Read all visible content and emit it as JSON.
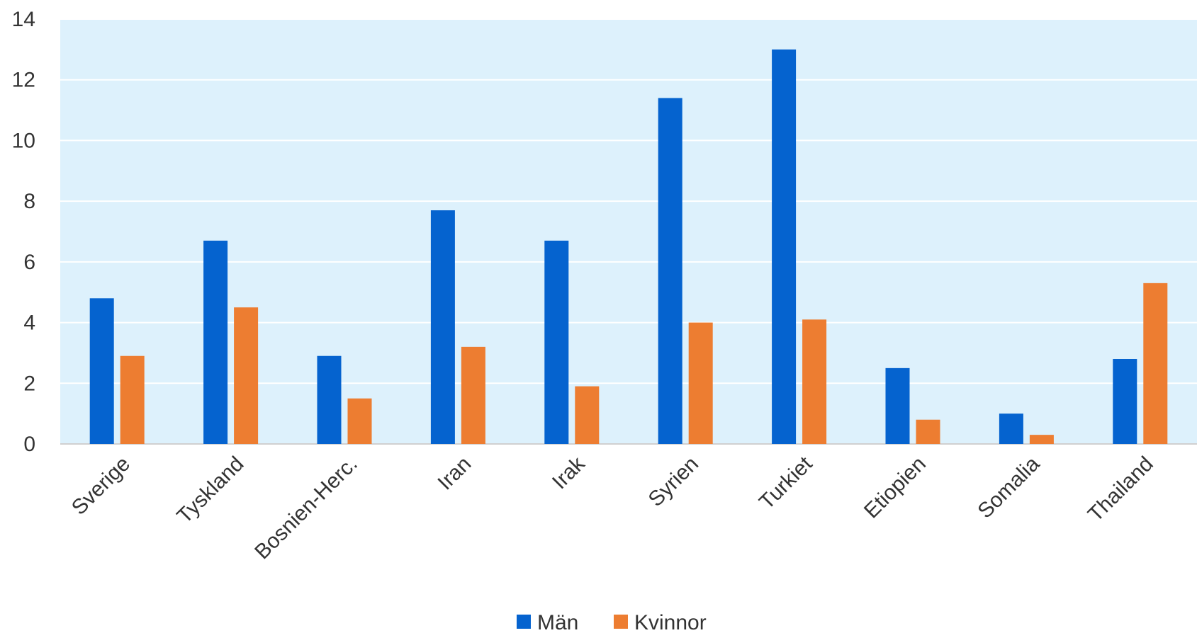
{
  "chart_data": {
    "type": "bar",
    "categories": [
      "Sverige",
      "Tyskland",
      "Bosnien-Herc.",
      "Iran",
      "Irak",
      "Syrien",
      "Turkiet",
      "Etiopien",
      "Somalia",
      "Thailand"
    ],
    "series": [
      {
        "name": "Män",
        "color": "#0563cf",
        "values": [
          4.8,
          6.7,
          2.9,
          7.7,
          6.7,
          11.4,
          13.0,
          2.5,
          1.0,
          2.8
        ]
      },
      {
        "name": "Kvinnor",
        "color": "#ed7d31",
        "values": [
          2.9,
          4.5,
          1.5,
          3.2,
          1.9,
          4.0,
          4.1,
          0.8,
          0.3,
          5.3
        ]
      }
    ],
    "ylim": [
      0,
      14
    ],
    "yticks": [
      0,
      2,
      4,
      6,
      8,
      10,
      12,
      14
    ],
    "grid": true,
    "plot_background": "#ddf1fc",
    "legend_position": "bottom"
  }
}
